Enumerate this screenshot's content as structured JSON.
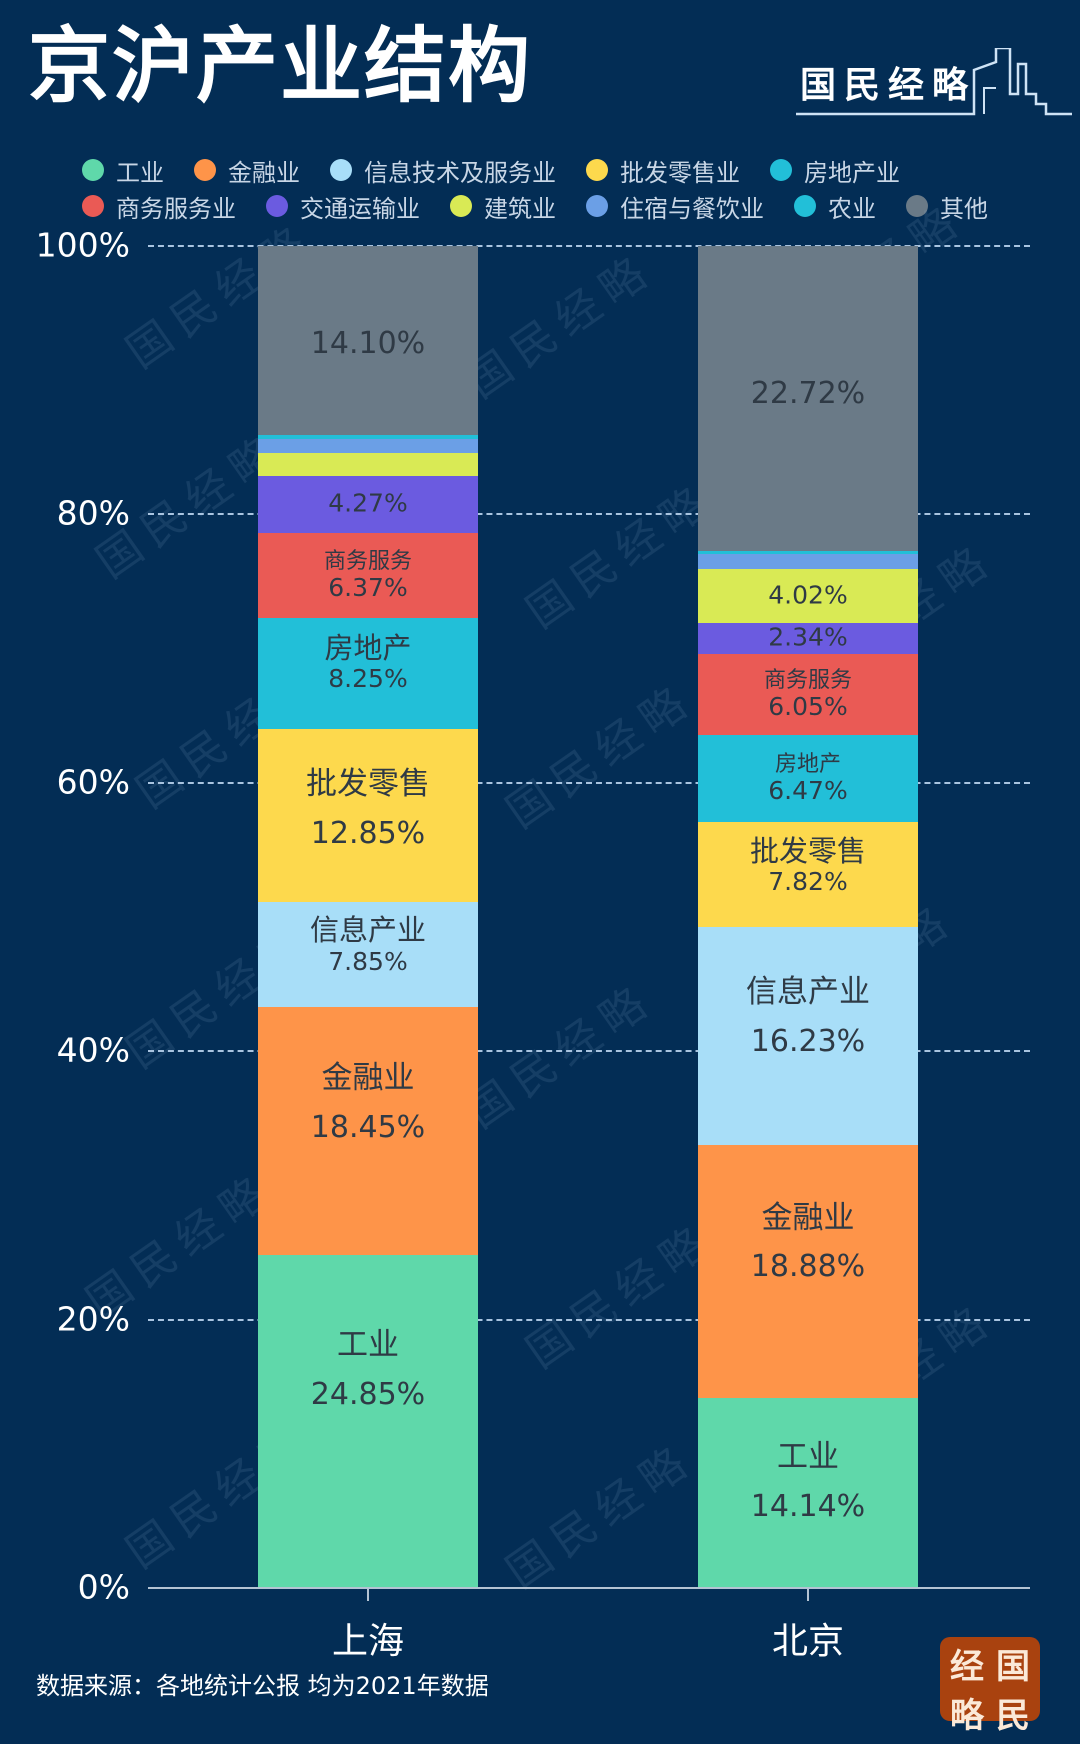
{
  "header": {
    "title": "京沪产业结构",
    "brand_text": "国民经略"
  },
  "legend": {
    "rows": [
      [
        {
          "label": "工业",
          "color": "#5fd8aa"
        },
        {
          "label": "金融业",
          "color": "#fe9449"
        },
        {
          "label": "信息技术及服务业",
          "color": "#a8def8"
        },
        {
          "label": "批发零售业",
          "color": "#fdd94d"
        },
        {
          "label": "房地产业",
          "color": "#22bfd8"
        }
      ],
      [
        {
          "label": "商务服务业",
          "color": "#ea5a55"
        },
        {
          "label": "交通运输业",
          "color": "#6b5be0"
        },
        {
          "label": "建筑业",
          "color": "#d9ea55"
        },
        {
          "label": "住宿与餐饮业",
          "color": "#6b9fe6"
        },
        {
          "label": "农业",
          "color": "#22bfd8"
        },
        {
          "label": "其他",
          "color": "#6a7a87"
        }
      ]
    ]
  },
  "footer": {
    "source": "数据来源：各地统计公报 均为2021年数据",
    "seal_chars": [
      "经",
      "国",
      "略",
      "民"
    ]
  },
  "watermark_text": "国民经略",
  "chart_data": {
    "type": "bar",
    "stacked": true,
    "title": "京沪产业结构",
    "xlabel": "",
    "ylabel": "",
    "ylim": [
      0,
      100
    ],
    "yticks": [
      "0%",
      "20%",
      "40%",
      "60%",
      "80%",
      "100%"
    ],
    "grid": true,
    "legend_position": "top",
    "categories": [
      "上海",
      "北京"
    ],
    "series": [
      {
        "name": "工业",
        "short": "工业",
        "color": "#5fd8aa",
        "values": [
          24.85,
          14.14
        ],
        "labeled": [
          true,
          true
        ]
      },
      {
        "name": "金融业",
        "short": "金融业",
        "color": "#fe9449",
        "values": [
          18.45,
          18.88
        ],
        "labeled": [
          true,
          true
        ]
      },
      {
        "name": "信息技术及服务业",
        "short": "信息产业",
        "color": "#a8def8",
        "values": [
          7.85,
          16.23
        ],
        "labeled": [
          true,
          true
        ]
      },
      {
        "name": "批发零售业",
        "short": "批发零售",
        "color": "#fdd94d",
        "values": [
          12.85,
          7.82
        ],
        "labeled": [
          true,
          true
        ]
      },
      {
        "name": "房地产业",
        "short": "房地产",
        "color": "#22bfd8",
        "values": [
          8.25,
          6.47
        ],
        "labeled": [
          true,
          true
        ]
      },
      {
        "name": "商务服务业",
        "short": "商务服务",
        "color": "#ea5a55",
        "values": [
          6.37,
          6.05
        ],
        "labeled": [
          true,
          true
        ]
      },
      {
        "name": "交通运输业",
        "short": "",
        "color": "#6b5be0",
        "values": [
          4.27,
          2.34
        ],
        "labeled": [
          true,
          true
        ]
      },
      {
        "name": "建筑业",
        "short": "",
        "color": "#d9ea55",
        "values": [
          1.66,
          4.02
        ],
        "labeled": [
          false,
          true
        ]
      },
      {
        "name": "住宿与餐饮业",
        "short": "",
        "color": "#6b9fe6",
        "values": [
          1.1,
          1.07
        ],
        "labeled": [
          false,
          false
        ]
      },
      {
        "name": "农业",
        "short": "",
        "color": "#22bfd8",
        "values": [
          0.25,
          0.26
        ],
        "labeled": [
          false,
          false
        ]
      },
      {
        "name": "其他",
        "short": "",
        "color": "#6a7a87",
        "values": [
          14.1,
          22.72
        ],
        "labeled": [
          true,
          true
        ]
      }
    ],
    "value_labels": {
      "上海": {
        "工业": "24.85%",
        "金融业": "18.45%",
        "信息技术及服务业": "7.85%",
        "批发零售业": "12.85%",
        "房地产业": "8.25%",
        "商务服务业": "6.37%",
        "交通运输业": "4.27%",
        "其他": "14.10%"
      },
      "北京": {
        "工业": "14.14%",
        "金融业": "18.88%",
        "信息技术及服务业": "16.23%",
        "批发零售业": "7.82%",
        "房地产业": "6.47%",
        "商务服务业": "6.05%",
        "交通运输业": "2.34%",
        "建筑业": "4.02%",
        "其他": "22.72%"
      }
    }
  }
}
